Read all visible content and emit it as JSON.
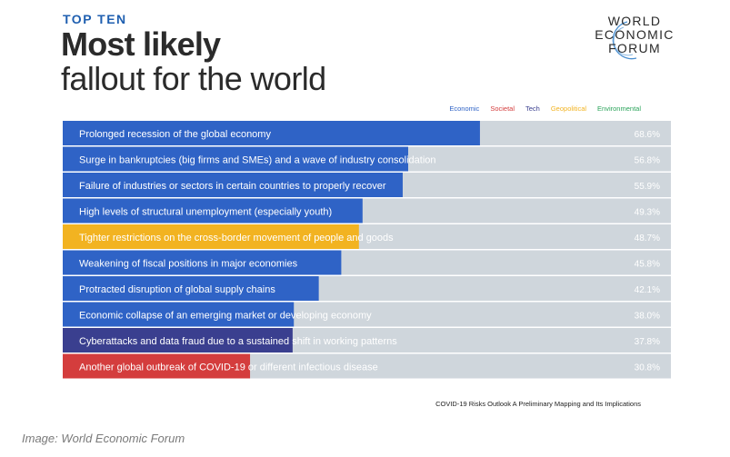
{
  "header": {
    "kicker": "TOP TEN",
    "title_line1": "Most likely",
    "title_line2": "fallout for the world"
  },
  "logo": {
    "line1": "WORLD",
    "line2": "ECONOMIC",
    "line3": "FORUM"
  },
  "legend": [
    {
      "label": "Economic",
      "color": "#2f63c6"
    },
    {
      "label": "Societal",
      "color": "#d43d3d"
    },
    {
      "label": "Tech",
      "color": "#3a3f8f"
    },
    {
      "label": "Geopolitical",
      "color": "#f2b321"
    },
    {
      "label": "Environmental",
      "color": "#2aa35a"
    }
  ],
  "chart_data": {
    "type": "bar",
    "orientation": "horizontal",
    "xlim": [
      0,
      100
    ],
    "categories": [
      "Prolonged recession of the global economy",
      "Surge in bankruptcies (big firms and SMEs) and a wave of industry consolidation",
      "Failure of industries or sectors in certain countries to properly recover",
      "High levels of structural unemployment (especially youth)",
      "Tighter restrictions on the cross-border movement of people and goods",
      "Weakening of fiscal positions in major economies",
      "Protracted disruption of global supply chains",
      "Economic collapse of an emerging market or developing economy",
      "Cyberattacks and data fraud due to a sustained shift in working patterns",
      "Another global outbreak of COVID-19 or different infectious disease"
    ],
    "values": [
      68.6,
      56.8,
      55.9,
      49.3,
      48.7,
      45.8,
      42.1,
      38.0,
      37.8,
      30.8
    ],
    "value_labels": [
      "68.6%",
      "56.8%",
      "55.9%",
      "49.3%",
      "48.7%",
      "45.8%",
      "42.1%",
      "38.0%",
      "37.8%",
      "30.8%"
    ],
    "categories_type": [
      "Economic",
      "Economic",
      "Economic",
      "Economic",
      "Geopolitical",
      "Economic",
      "Economic",
      "Economic",
      "Tech",
      "Societal"
    ],
    "colors": {
      "Economic": "#2f63c6",
      "Societal": "#d43d3d",
      "Tech": "#3a3f8f",
      "Geopolitical": "#f2b321",
      "Environmental": "#2aa35a",
      "background": "#cfd6dc"
    }
  },
  "source": "COVID-19 Risks Outlook A Preliminary Mapping and Its Implications",
  "credit": "Image: World Economic Forum"
}
